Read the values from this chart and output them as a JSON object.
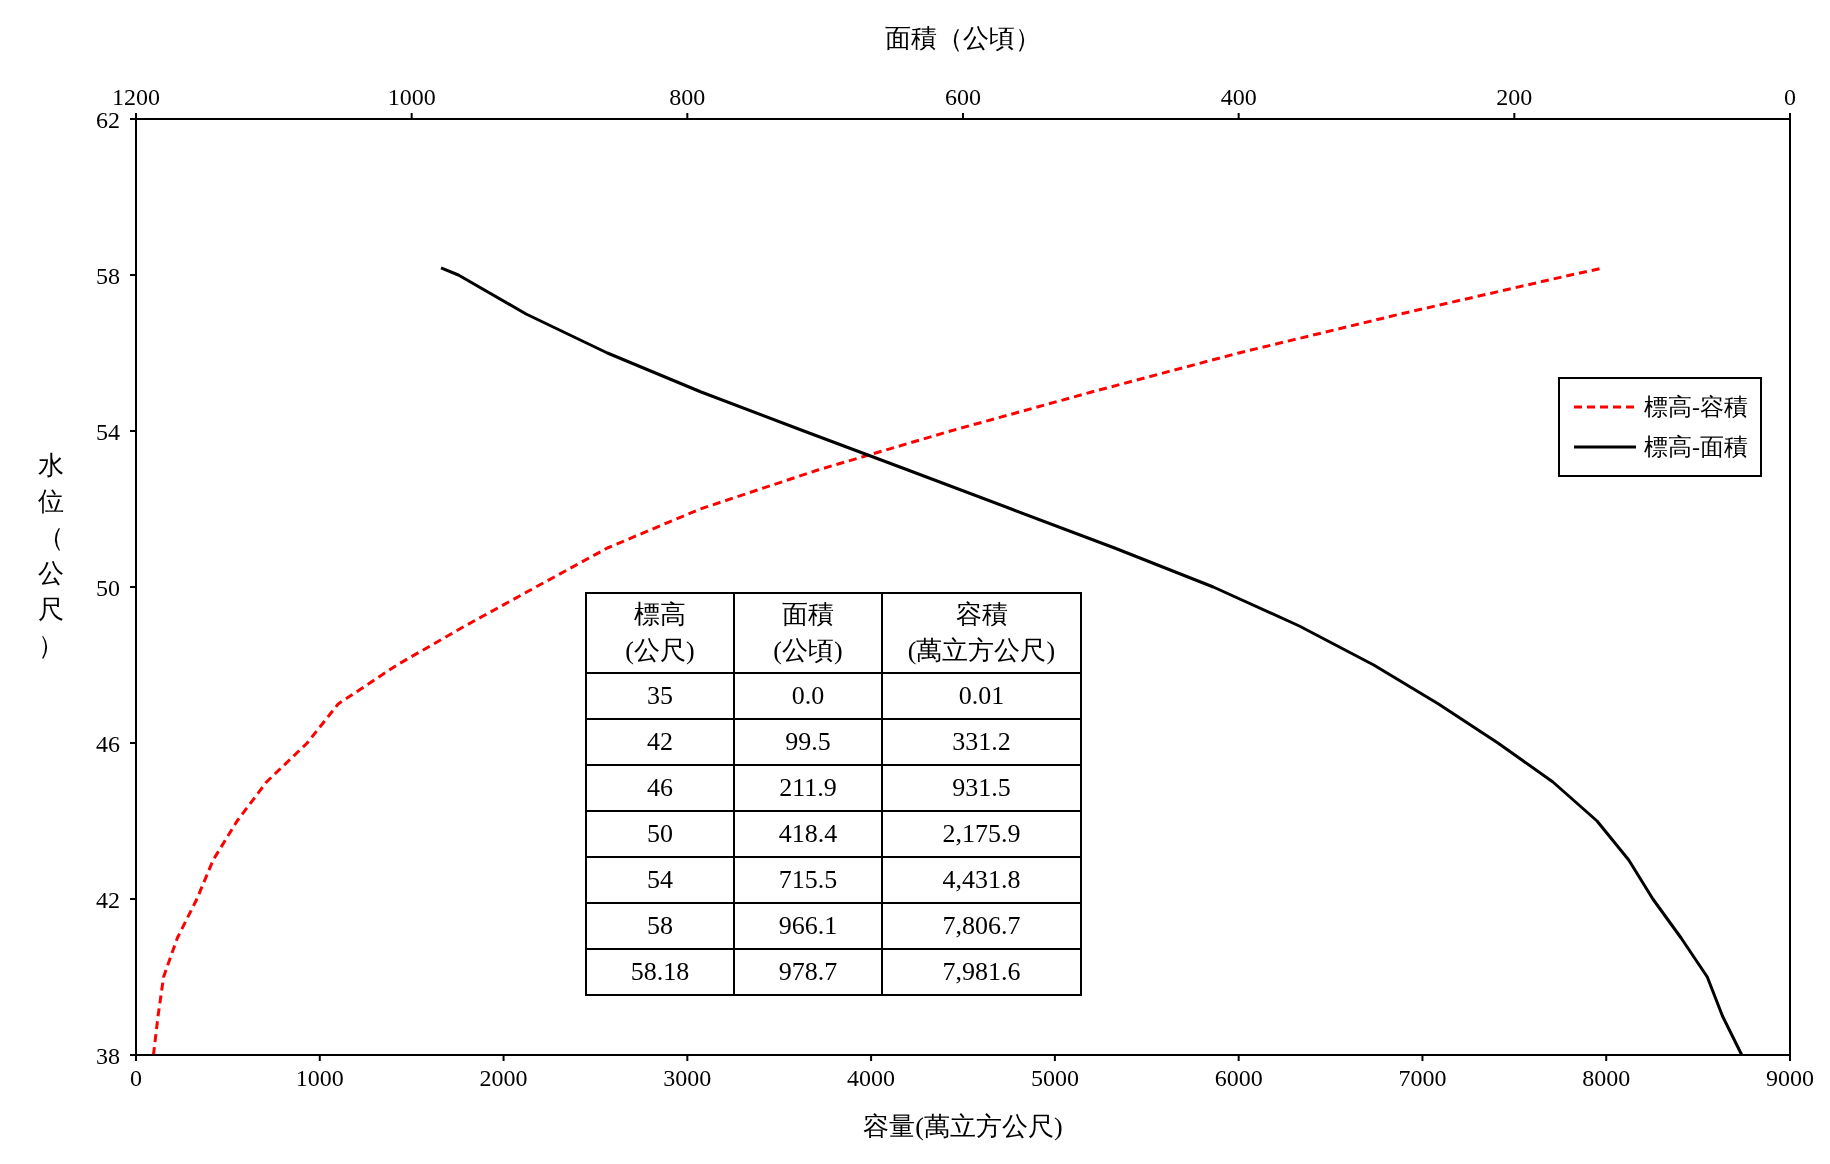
{
  "chart_data": {
    "type": "line",
    "xlabel": "容量(萬立方公尺)",
    "x2label": "面積（公頃）",
    "ylabel": "水位（公尺）",
    "xlim": [
      0,
      9000
    ],
    "xticks": [
      0,
      1000,
      2000,
      3000,
      4000,
      5000,
      6000,
      7000,
      8000,
      9000
    ],
    "x2lim": [
      1200,
      0
    ],
    "x2ticks": [
      1200,
      1000,
      800,
      600,
      400,
      200,
      0
    ],
    "ylim": [
      38,
      62
    ],
    "yticks": [
      38,
      42,
      46,
      50,
      54,
      58,
      62
    ],
    "grid": false,
    "legend": "right",
    "marker": "none",
    "series": [
      {
        "name": "標高-容積",
        "color": "#ff0000",
        "line_style": "dashed",
        "x": [
          95,
          120,
          150,
          225,
          331.2,
          420,
          550,
          710,
          931.5,
          1100,
          1420,
          1790,
          2175.9,
          2565,
          3070,
          3710,
          4431.8,
          5200,
          6000,
          6880,
          7806.7,
          7981.6
        ],
        "values": [
          38,
          39,
          40,
          41,
          42,
          43,
          44,
          45,
          46,
          47,
          48,
          49,
          50,
          51,
          52,
          53,
          54,
          55,
          56,
          57,
          58,
          58.18
        ]
      },
      {
        "name": "標高-面積",
        "color": "#000000",
        "line_style": "solid",
        "axis": "x2",
        "x": [
          35,
          49,
          60,
          79,
          99.5,
          117,
          140,
          172,
          211.9,
          255,
          302,
          356,
          418.4,
          490,
          565,
          640,
          715.5,
          790,
          858,
          917,
          966.1,
          978.7
        ],
        "values": [
          38,
          39,
          40,
          41,
          42,
          43,
          44,
          45,
          46,
          47,
          48,
          49,
          50,
          51,
          52,
          53,
          54,
          55,
          56,
          57,
          58,
          58.18
        ]
      }
    ],
    "annotations": [
      "標高\n(公尺)",
      "面積\n(公頃)",
      "容積\n(萬立方公尺)",
      "35",
      "0.0",
      "0.01",
      "42",
      "99.5",
      "331.2",
      "46",
      "211.9",
      "931.5",
      "50",
      "418.4",
      "2,175.9",
      "54",
      "715.5",
      "4,431.8",
      "58",
      "966.1",
      "7,806.7",
      "58.18",
      "978.7",
      "7,981.6"
    ]
  }
}
